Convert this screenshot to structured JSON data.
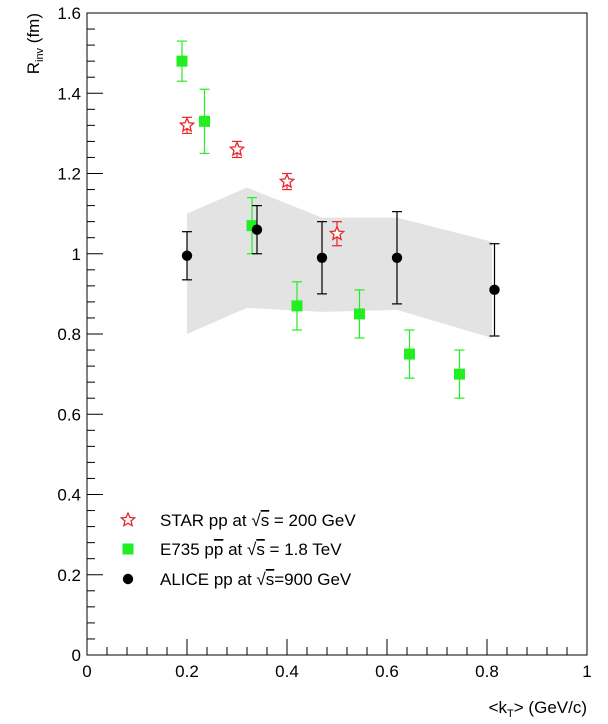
{
  "chart_data": {
    "type": "scatter",
    "xlabel": {
      "pre": "<k",
      "sub": "T",
      "post": "> (GeV/c)"
    },
    "ylabel": {
      "pre": "R",
      "sub": "inv",
      "post": " (fm)"
    },
    "xlim": [
      0,
      1
    ],
    "ylim": [
      0,
      1.6
    ],
    "x_ticks": [
      "0",
      "0.2",
      "0.4",
      "0.6",
      "0.8",
      "1"
    ],
    "y_ticks": [
      "0",
      "0.2",
      "0.4",
      "0.6",
      "0.8",
      "1",
      "1.2",
      "1.4",
      "1.6"
    ],
    "grid": false,
    "legend_position": "bottom-left",
    "band": {
      "x": [
        0.2,
        0.32,
        0.47,
        0.62,
        0.81
      ],
      "upper": [
        1.1,
        1.165,
        1.09,
        1.09,
        1.03
      ],
      "lower": [
        0.8,
        0.865,
        0.855,
        0.86,
        0.79
      ],
      "color": "#e3e3e3"
    },
    "series": [
      {
        "name": "STAR pp at √s = 200 GeV",
        "legend": {
          "pre": "STAR pp at ",
          "sqrt": "s",
          "post": " = 200 GeV"
        },
        "marker": "open-star",
        "color": "#e8262b",
        "x": [
          0.2,
          0.3,
          0.4,
          0.5
        ],
        "y": [
          1.32,
          1.26,
          1.18,
          1.05
        ],
        "err_lo": [
          0.02,
          0.02,
          0.02,
          0.03
        ],
        "err_hi": [
          0.02,
          0.02,
          0.02,
          0.03
        ]
      },
      {
        "name": "E735 pp̄ at √s = 1.8 TeV",
        "legend": {
          "pre": "E735 p",
          "pbar": "p",
          "mid": " at ",
          "sqrt": "s",
          "post": " = 1.8 TeV"
        },
        "marker": "filled-square",
        "color": "#22ee22",
        "x": [
          0.19,
          0.235,
          0.33,
          0.42,
          0.545,
          0.645,
          0.745
        ],
        "y": [
          1.48,
          1.33,
          1.07,
          0.87,
          0.85,
          0.75,
          0.7
        ],
        "err_lo": [
          0.05,
          0.08,
          0.07,
          0.06,
          0.06,
          0.06,
          0.06
        ],
        "err_hi": [
          0.05,
          0.08,
          0.07,
          0.06,
          0.06,
          0.06,
          0.06
        ]
      },
      {
        "name": "ALICE pp at √s=900 GeV",
        "legend": {
          "pre": "ALICE pp at ",
          "sqrt": "s",
          "post": "=900 GeV"
        },
        "marker": "filled-circle",
        "color": "#000000",
        "x": [
          0.2,
          0.34,
          0.47,
          0.62,
          0.815
        ],
        "y": [
          0.995,
          1.06,
          0.99,
          0.99,
          0.91
        ],
        "err_lo": [
          0.06,
          0.06,
          0.09,
          0.115,
          0.115
        ],
        "err_hi": [
          0.06,
          0.06,
          0.09,
          0.115,
          0.115
        ]
      }
    ]
  }
}
